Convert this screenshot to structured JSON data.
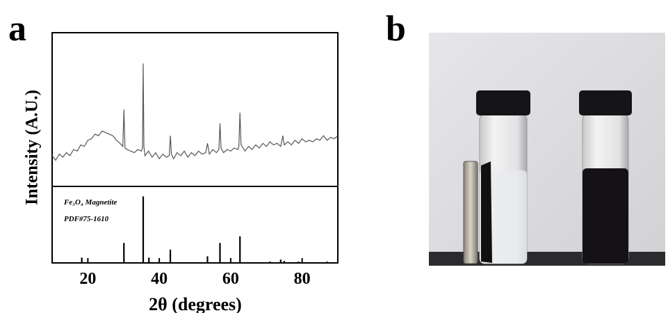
{
  "panel_labels": [
    "a",
    "b"
  ],
  "chart_data": [
    {
      "type": "line",
      "y_label": "Intensity (A.U.)",
      "xlim": [
        10,
        90
      ],
      "ylim": [
        0,
        100
      ],
      "x": [
        10,
        11,
        12,
        13,
        14,
        15,
        16,
        17,
        18,
        19,
        20,
        21,
        22,
        23,
        24,
        25,
        26,
        27,
        28,
        29,
        29.8,
        30.1,
        30.4,
        31,
        32,
        33,
        34,
        35,
        35.3,
        35.5,
        35.7,
        36,
        37,
        38,
        39,
        40,
        41,
        42,
        42.8,
        43.1,
        43.4,
        44,
        45,
        46,
        47,
        48,
        49,
        50,
        51,
        52,
        53,
        53.5,
        54,
        55,
        56,
        56.7,
        57,
        57.3,
        58,
        59,
        60,
        61,
        62,
        62.3,
        62.6,
        62.9,
        64,
        65,
        66,
        67,
        68,
        69,
        70,
        71,
        72,
        73,
        74,
        74.6,
        75,
        76,
        77,
        78,
        79,
        80,
        81,
        82,
        83,
        84,
        85,
        86,
        87,
        88,
        89,
        90
      ],
      "series": [
        {
          "color": "#555555",
          "values": [
            20,
            17,
            21,
            19,
            22,
            20,
            24,
            23,
            27,
            26,
            30,
            31,
            34,
            33,
            36,
            35,
            34,
            33,
            30,
            28,
            26,
            50,
            25,
            24,
            23,
            22,
            24,
            23,
            25,
            80,
            26,
            20,
            23,
            19,
            22,
            18,
            21,
            19,
            20,
            33,
            21,
            18,
            22,
            20,
            23,
            19,
            22,
            20,
            23,
            21,
            22,
            28,
            21,
            24,
            22,
            24,
            41,
            25,
            22,
            24,
            23,
            25,
            24,
            26,
            48,
            27,
            23,
            26,
            24,
            27,
            25,
            28,
            26,
            29,
            27,
            28,
            26,
            33,
            27,
            29,
            27,
            30,
            28,
            31,
            29,
            30,
            29,
            31,
            30,
            33,
            30,
            32,
            31,
            33
          ]
        }
      ]
    },
    {
      "type": "stick",
      "x_label": "2θ (degrees)",
      "annotations": [
        "Fe₃O₄ Magnetite",
        "PDF#75-1610"
      ],
      "xlim": [
        10,
        90
      ],
      "xticks": [
        20,
        40,
        60,
        80
      ],
      "ylim": [
        0,
        115
      ],
      "color": "#000000",
      "x": [
        18.3,
        30.1,
        35.5,
        37.1,
        43.1,
        53.5,
        57.0,
        62.6,
        71.0,
        74.0,
        75.0,
        79.0,
        87.0
      ],
      "values": [
        8,
        30,
        100,
        8,
        20,
        10,
        30,
        40,
        2,
        5,
        3,
        2,
        2
      ]
    }
  ]
}
